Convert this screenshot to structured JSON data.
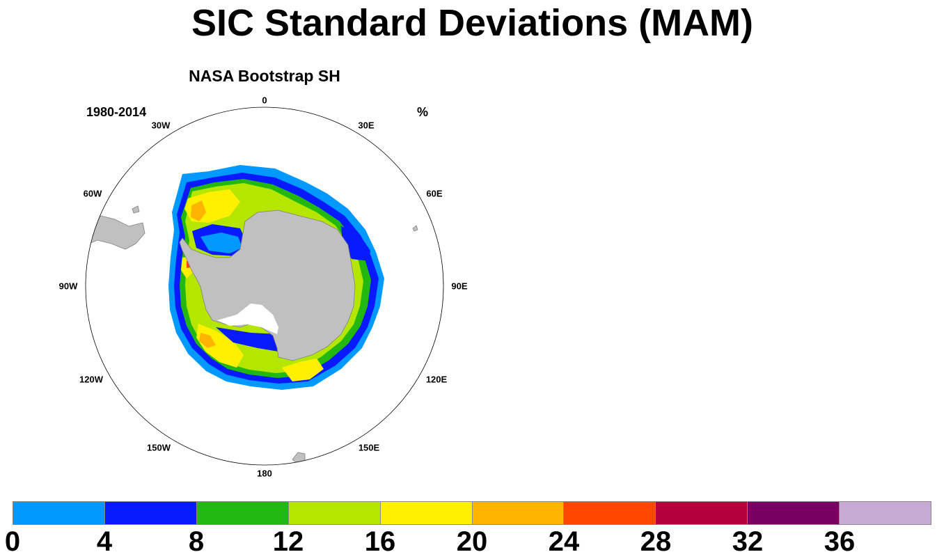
{
  "title": "SIC Standard Deviations (MAM)",
  "panel": {
    "title": "NASA Bootstrap SH",
    "period": "1980-2014",
    "units": "%"
  },
  "longitude_labels": [
    "0",
    "30E",
    "60E",
    "90E",
    "120E",
    "150E",
    "180",
    "150W",
    "120W",
    "90W",
    "60W",
    "30W"
  ],
  "colorbar": {
    "labels": [
      "0",
      "4",
      "8",
      "12",
      "16",
      "20",
      "24",
      "28",
      "32",
      "36"
    ],
    "colors": [
      "#0099ff",
      "#0a1aff",
      "#23b80f",
      "#b4e600",
      "#fff000",
      "#ffb400",
      "#ff4600",
      "#b4003c",
      "#780064",
      "#c8aad6"
    ]
  },
  "chart_data": {
    "type": "heatmap",
    "title": "SIC Standard Deviations (MAM)",
    "subtitle": "NASA Bootstrap SH",
    "period": "1980-2014",
    "units": "%",
    "projection": "south polar stereographic",
    "levels": [
      0,
      4,
      8,
      12,
      16,
      20,
      24,
      28,
      32,
      36
    ],
    "colors": [
      "#0099ff",
      "#0a1aff",
      "#23b80f",
      "#b4e600",
      "#fff000",
      "#ffb400",
      "#ff4600",
      "#b4003c",
      "#780064",
      "#c8aad6"
    ],
    "land_color": "#c0c0c0"
  }
}
